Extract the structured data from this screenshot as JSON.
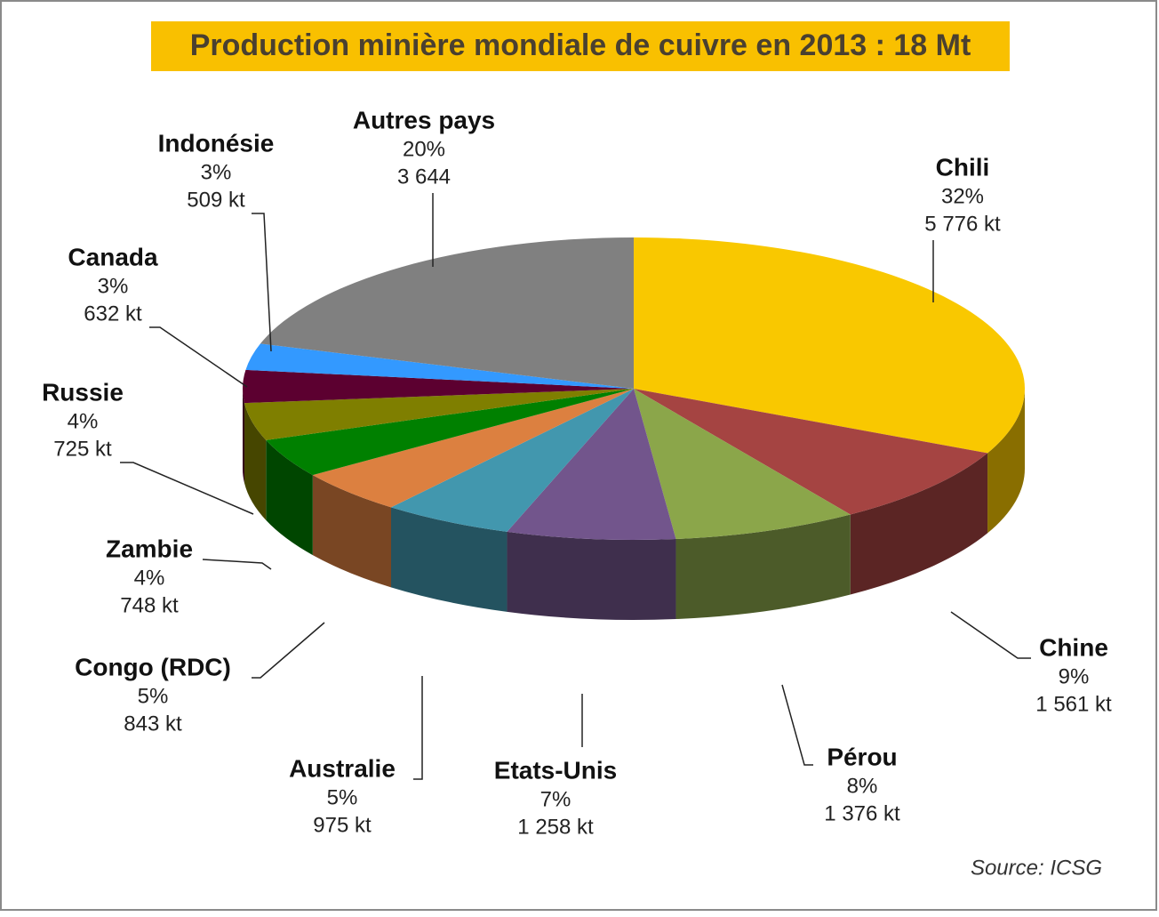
{
  "chart_data": {
    "type": "pie3d",
    "title": "Production minière mondiale de cuivre en 2013 : 18 Mt",
    "source": "Source: ICSG",
    "categories": [
      "Chili",
      "Chine",
      "Pérou",
      "Etats-Unis",
      "Australie",
      "Congo (RDC)",
      "Zambie",
      "Russie",
      "Canada",
      "Indonésie",
      "Autres pays"
    ],
    "values": [
      5776,
      1561,
      1376,
      1258,
      975,
      843,
      748,
      725,
      632,
      509,
      3644
    ],
    "value_labels": [
      "5 776 kt",
      "1 561 kt",
      "1 376 kt",
      "1 258 kt",
      "975 kt",
      "843 kt",
      "748 kt",
      "725 kt",
      "632 kt",
      "509 kt",
      "3 644"
    ],
    "percentages": [
      32,
      9,
      8,
      7,
      5,
      5,
      4,
      4,
      3,
      3,
      20
    ],
    "percentage_labels": [
      "32%",
      "9%",
      "8%",
      "7%",
      "5%",
      "5%",
      "4%",
      "4%",
      "3%",
      "3%",
      "20%"
    ],
    "colors": [
      "#f9c800",
      "#a54442",
      "#8ba64a",
      "#72558c",
      "#4297ae",
      "#dc8040",
      "#008000",
      "#7f7f00",
      "#5c0030",
      "#3399ff",
      "#808080"
    ]
  }
}
